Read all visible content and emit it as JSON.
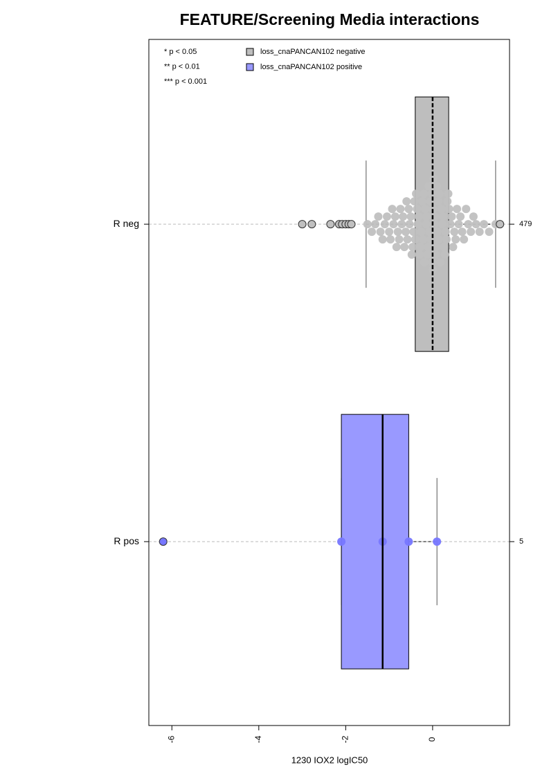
{
  "chart_data": {
    "type": "boxplot",
    "title": "FEATURE/Screening Media interactions",
    "x_label": "1230 IOX2 logIC50",
    "xlim": [
      -6.53,
      1.77
    ],
    "xticks": [
      -6,
      -4,
      -2,
      0
    ],
    "grid": true,
    "categories": [
      "R neg",
      "R pos"
    ],
    "counts": [
      479,
      5
    ],
    "notes": [
      "* p < 0.05",
      "** p < 0.01",
      "*** p < 0.001"
    ],
    "legend_position": "top",
    "series": [
      {
        "name": "loss_cnaPANCAN102 negative",
        "color": "#bebebe",
        "point_color": "#c0c0c0",
        "box": {
          "whislo": -1.53,
          "q1": -0.4,
          "med": 0,
          "q3": 0.37,
          "whishi": 1.45
        },
        "values": [
          -3.0,
          -2.78,
          -2.35,
          -2.15,
          -2.08,
          -2.0,
          -1.93,
          -1.87,
          -1.5,
          -1.4,
          -1.32,
          -1.25,
          -1.2,
          -1.15,
          -1.1,
          -1.05,
          -1.0,
          -0.97,
          -0.93,
          -0.9,
          -0.86,
          -0.83,
          -0.8,
          -0.77,
          -0.74,
          -0.71,
          -0.68,
          -0.65,
          -0.62,
          -0.6,
          -0.58,
          -0.55,
          -0.53,
          -0.5,
          -0.48,
          -0.46,
          -0.44,
          -0.42,
          -0.4,
          -0.38,
          -0.36,
          -0.34,
          -0.32,
          -0.3,
          -0.28,
          -0.26,
          -0.24,
          -0.22,
          -0.2,
          -0.19,
          -0.17,
          -0.15,
          -0.14,
          -0.12,
          -0.1,
          -0.09,
          -0.07,
          -0.05,
          -0.04,
          -0.02,
          -0.01,
          0,
          0.01,
          0.02,
          0.04,
          0.05,
          0.07,
          0.08,
          0.1,
          0.11,
          0.13,
          0.14,
          0.16,
          0.18,
          0.2,
          0.22,
          0.24,
          0.26,
          0.28,
          0.3,
          0.32,
          0.34,
          0.36,
          0.38,
          0.41,
          0.44,
          0.47,
          0.5,
          0.53,
          0.56,
          0.6,
          0.64,
          0.68,
          0.72,
          0.77,
          0.82,
          0.88,
          0.94,
          1.0,
          1.08,
          1.18,
          1.3,
          1.45,
          1.55
        ]
      },
      {
        "name": "loss_cnaPANCAN102 positive",
        "color": "#9999ff",
        "point_color": "#7777ff",
        "box": {
          "whislo": -2.1,
          "q1": -2.1,
          "med": -1.15,
          "q3": -0.55,
          "whishi": 0.1
        },
        "values": [
          -6.2,
          -2.1,
          -1.15,
          -0.55,
          0.1
        ]
      }
    ]
  }
}
